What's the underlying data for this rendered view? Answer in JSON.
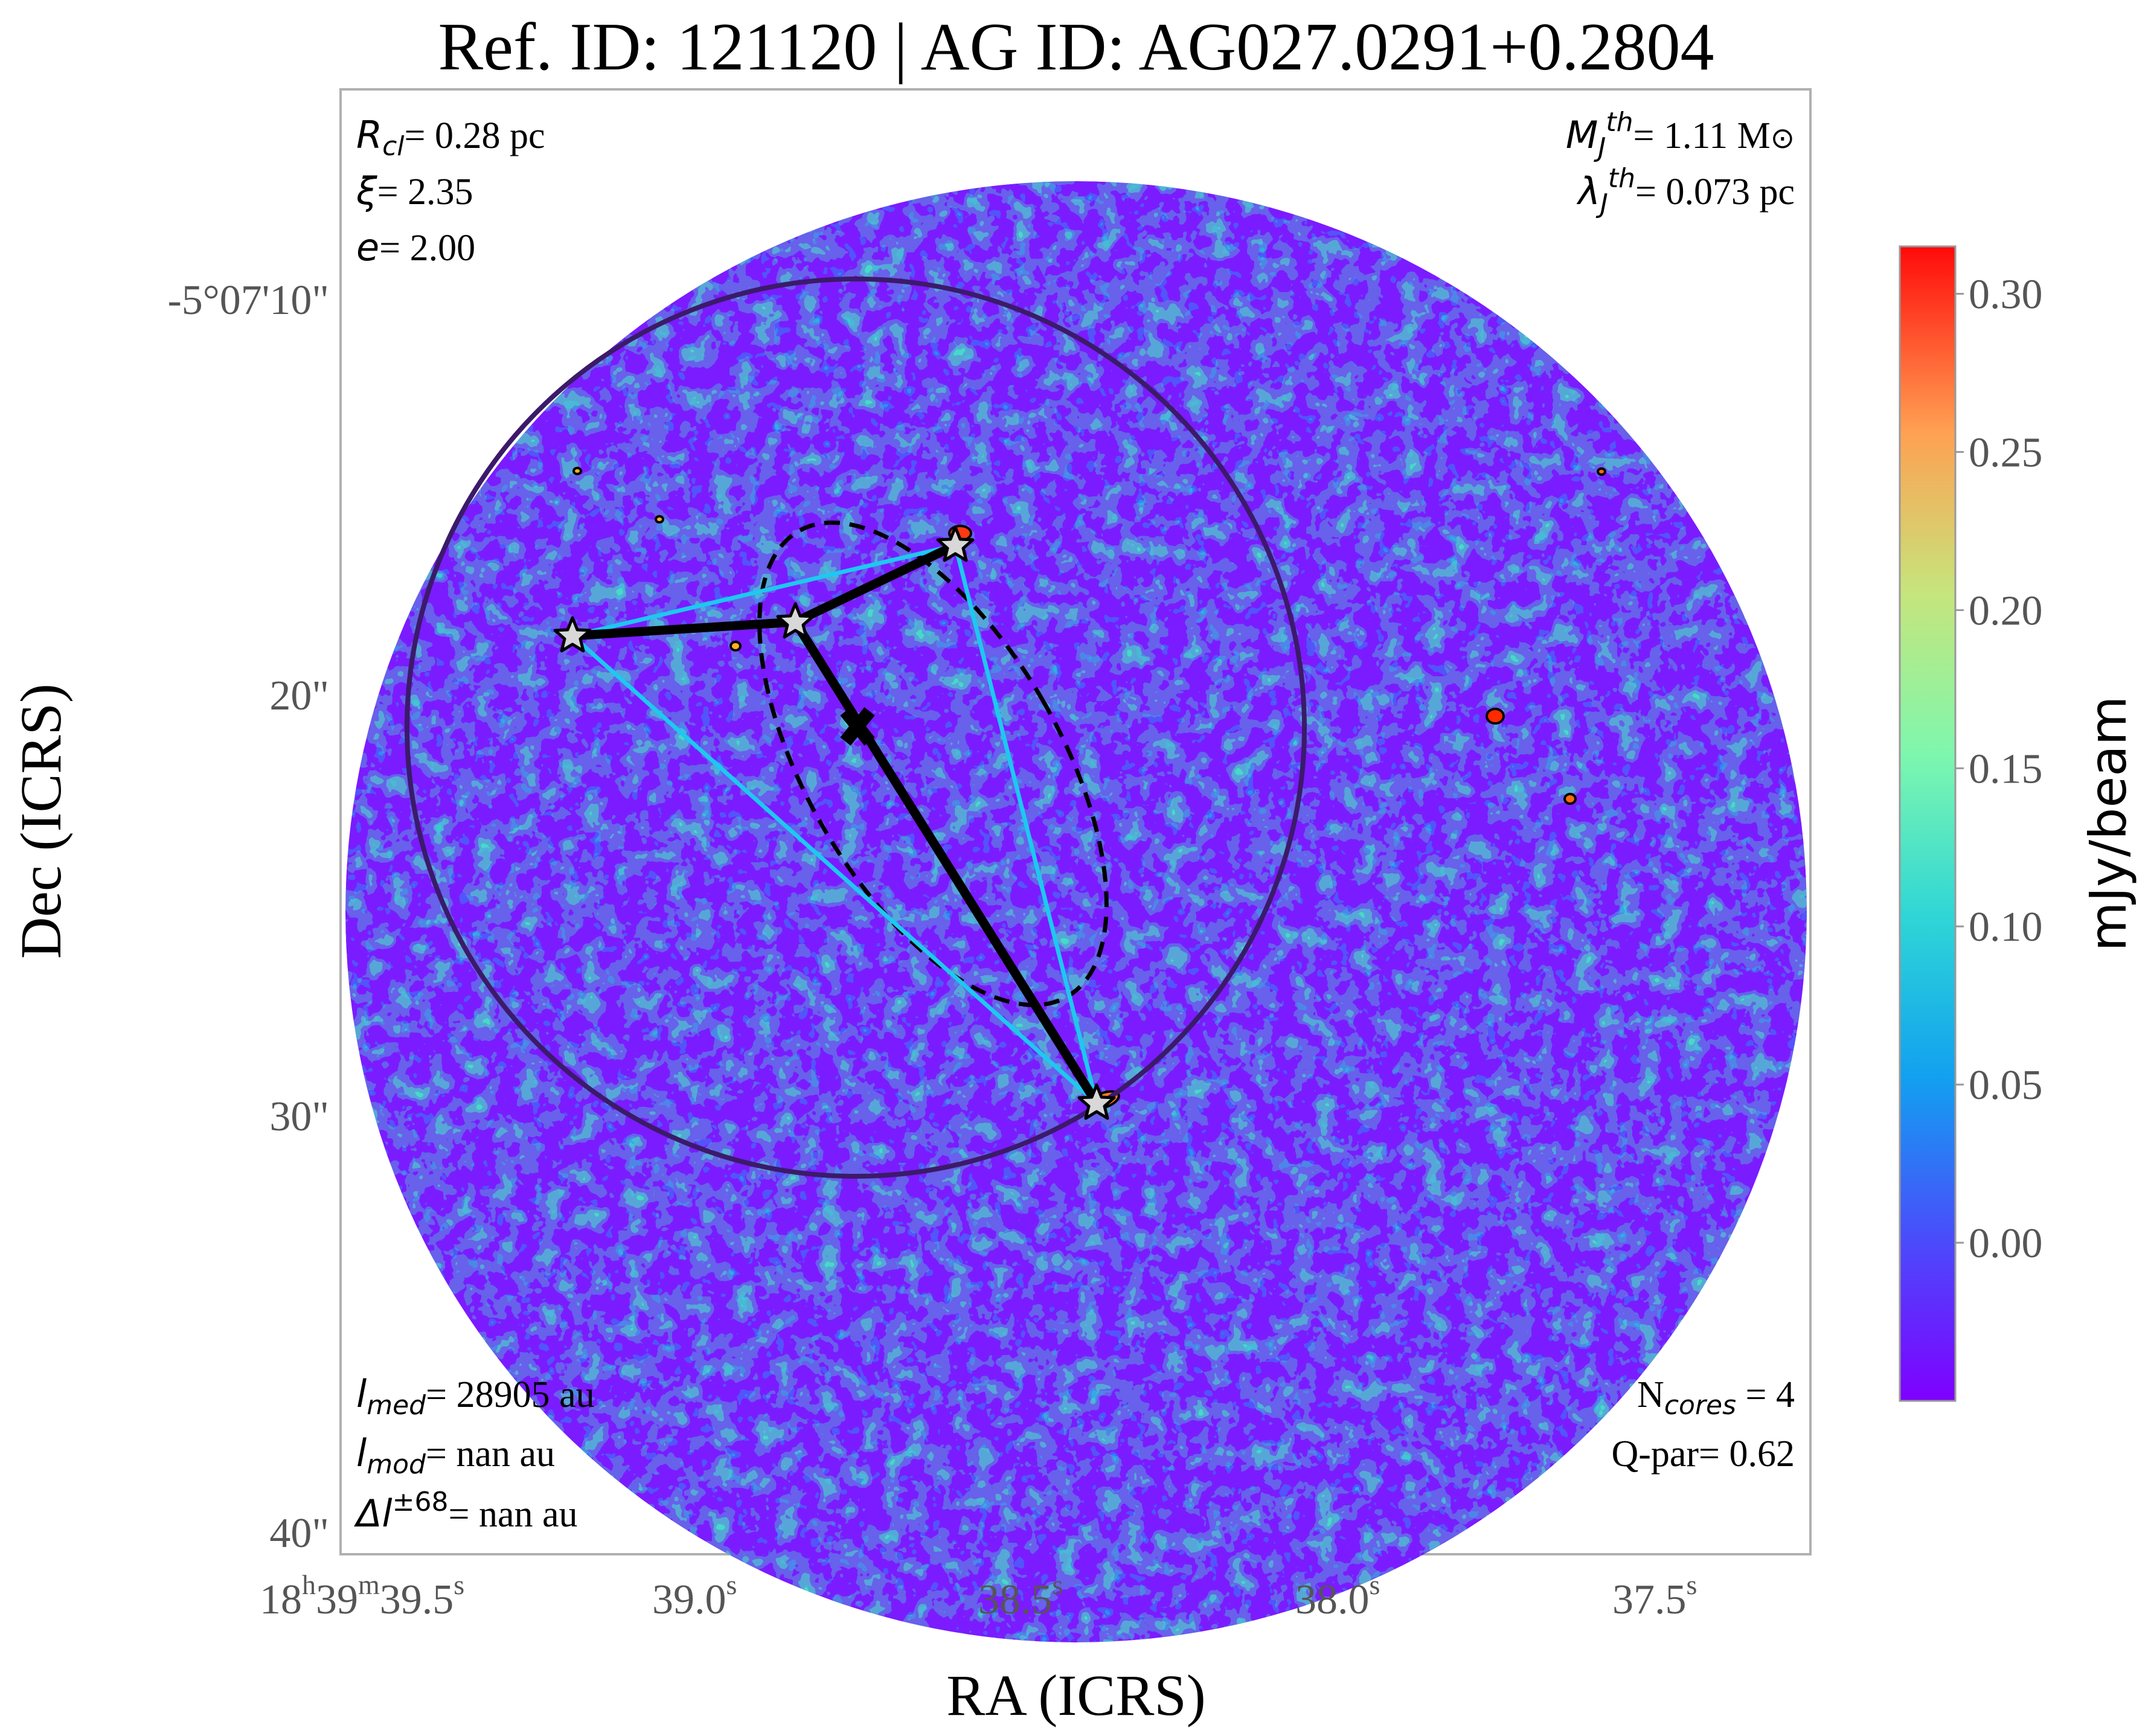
{
  "title": "Ref. ID: 121120 | AG ID: AG027.0291+0.2804",
  "axes": {
    "xlabel": "RA (ICRS)",
    "ylabel": "Dec (ICRS)",
    "x_ticks": [
      {
        "base": "18",
        "h": "h",
        "m": "39",
        "mm": "m",
        "s": "39.5",
        "ss": "s"
      },
      {
        "s": "39.0",
        "ss": "s"
      },
      {
        "s": "38.5",
        "ss": "s"
      },
      {
        "s": "38.0",
        "ss": "s"
      },
      {
        "s": "37.5",
        "ss": "s"
      }
    ],
    "y_ticks": [
      "-5°07'10\"",
      "20\"",
      "30\"",
      "40\""
    ]
  },
  "colorbar": {
    "label": "mJy/beam",
    "ticks": [
      "0.30",
      "0.25",
      "0.20",
      "0.15",
      "0.10",
      "0.05",
      "0.00"
    ],
    "colormap": "rainbow",
    "range": [
      -0.05,
      0.315
    ]
  },
  "annotations": {
    "top_left": {
      "r_sym": "R",
      "r_sub": "cl",
      "r_val": "= 0.28 pc",
      "xi_sym": "ξ",
      "xi_val": "= 2.35",
      "e_sym": "e",
      "e_val": "= 2.00"
    },
    "top_right": {
      "mj_sym": "M",
      "mj_sub": "J",
      "mj_sup": "th",
      "mj_val": "= 1.11 M",
      "mj_unit": "⊙",
      "lj_sym": "λ",
      "lj_sub": "J",
      "lj_sup": "th",
      "lj_val": "= 0.073 pc"
    },
    "bottom_left": {
      "lmed_sym": "l",
      "lmed_sub": "med",
      "lmed_val": "= 28905 au",
      "lmod_sym": "l",
      "lmod_sub": "mod",
      "lmod_val": "= nan au",
      "dl_sym": "Δl",
      "dl_sup": "±68",
      "dl_val": "= nan au"
    },
    "bottom_right": {
      "n_sym": "N",
      "n_sub": "cores",
      "n_val": " = 4",
      "q_text": "Q-par= 0.62"
    }
  },
  "colors": {
    "background_map": "#7a1cff",
    "circle": "#3b1a6a",
    "mst": "#000000",
    "triangulation": "#1ec8f0",
    "star_fill": "#d8d8d8"
  },
  "cores": 4
}
